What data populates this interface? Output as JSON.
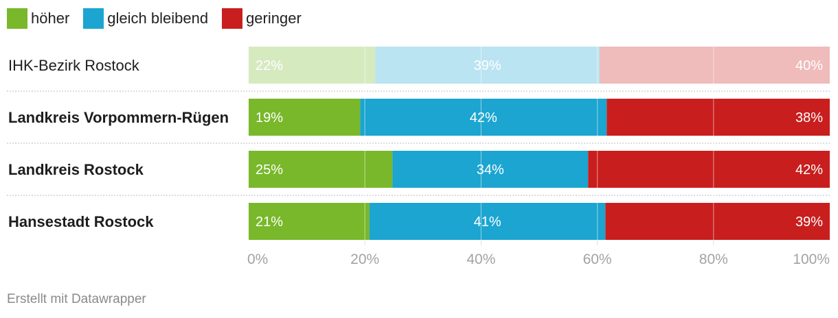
{
  "legend": [
    {
      "label": "höher",
      "color": "#78b82a"
    },
    {
      "label": "gleich bleibend",
      "color": "#1ba5d0"
    },
    {
      "label": "geringer",
      "color": "#c91e1e"
    }
  ],
  "chart_data": {
    "type": "bar",
    "orientation": "horizontal",
    "stacked": true,
    "unit": "%",
    "categories": [
      "IHK-Bezirk Rostock",
      "Landkreis Vorpommern-Rügen",
      "Landkreis Rostock",
      "Hansestadt Rostock"
    ],
    "category_bold": [
      false,
      true,
      true,
      true
    ],
    "category_faded": [
      true,
      false,
      false,
      false
    ],
    "series": [
      {
        "name": "höher",
        "color": "#78b82a",
        "values": [
          22,
          19,
          25,
          21
        ]
      },
      {
        "name": "gleich bleibend",
        "color": "#1ba5d0",
        "values": [
          39,
          42,
          34,
          41
        ]
      },
      {
        "name": "geringer",
        "color": "#c91e1e",
        "values": [
          40,
          38,
          42,
          39
        ]
      }
    ],
    "xlim": [
      0,
      100
    ],
    "x_ticks": [
      0,
      20,
      40,
      60,
      80,
      100
    ],
    "x_tick_labels": [
      "0%",
      "20%",
      "40%",
      "60%",
      "80%",
      "100%"
    ],
    "grid": true,
    "legend_position": "top-left"
  },
  "credit": "Erstellt mit Datawrapper"
}
